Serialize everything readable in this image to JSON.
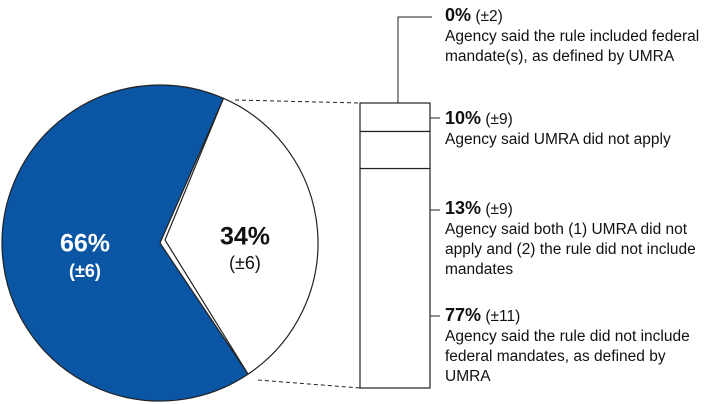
{
  "chart_data": [
    {
      "type": "pie",
      "values": [
        66,
        34
      ],
      "value_labels": [
        "66%",
        "34%"
      ],
      "errors": [
        6,
        6
      ],
      "error_labels": [
        "(±6)",
        "(±6)"
      ],
      "colors": [
        "#0a56a5",
        "#ffffff"
      ]
    },
    {
      "type": "stacked-bar",
      "categories": [
        "Agency said the rule included federal mandate(s), as defined by UMRA",
        "Agency said UMRA did not apply",
        "Agency said both (1) UMRA did not apply and (2) the rule did not include mandates",
        "Agency said the rule did not include federal mandates, as defined by UMRA"
      ],
      "values": [
        0,
        10,
        13,
        77
      ],
      "value_labels": [
        "0%",
        "10%",
        "13%",
        "77%"
      ],
      "errors": [
        2,
        9,
        9,
        11
      ],
      "error_labels": [
        "(±2)",
        "(±9)",
        "(±9)",
        "(±11)"
      ],
      "color": "#ffffff"
    }
  ]
}
